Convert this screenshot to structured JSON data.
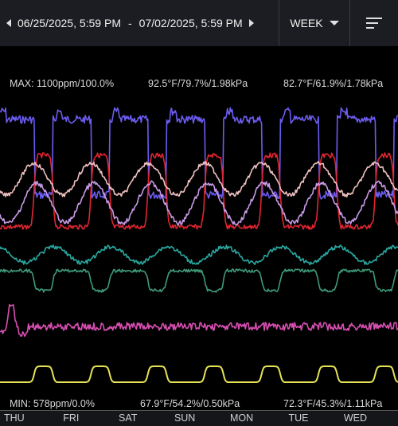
{
  "header": {
    "start_date": "06/25/2025, 5:59 PM",
    "separator": "-",
    "end_date": "07/02/2025, 5:59 PM",
    "period": "WEEK",
    "menu_icon": "menu-icon"
  },
  "labels": {
    "max_text": "MAX: 1100ppm/100.0%",
    "max_mid": "92.5°F/79.7%/1.98kPa",
    "max_right": "82.7°F/61.9%/1.78kPa",
    "min_text": "MIN: 578ppm/0.0%",
    "min_mid": "67.9°F/54.2%/0.50kPa",
    "min_right": "72.3°F/45.3%/1.11kPa"
  },
  "chart_data": {
    "type": "line",
    "x_unit": "days from start (06/25/2025 5:59 PM)",
    "x_range": [
      0,
      7
    ],
    "day_labels": [
      {
        "name": "THU",
        "x": 0.25
      },
      {
        "name": "FRI",
        "x": 1.25
      },
      {
        "name": "SAT",
        "x": 2.25
      },
      {
        "name": "SUN",
        "x": 3.25
      },
      {
        "name": "MON",
        "x": 4.25
      },
      {
        "name": "TUE",
        "x": 5.25
      },
      {
        "name": "WED",
        "x": 6.25
      }
    ],
    "colors": {
      "co2": "#6b5cf0",
      "temp": "#e02530",
      "humidity": "#f0c0c0",
      "vpd": "#c89ae6",
      "teal": "#2aa8a0",
      "green": "#3f9a7a",
      "pink": "#d84fb2",
      "light": "#e6e356"
    }
  }
}
